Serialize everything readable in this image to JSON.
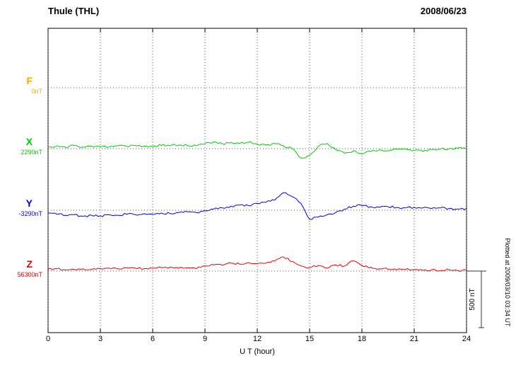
{
  "header": {
    "station": "Thule (THL)",
    "date": "2008/06/23"
  },
  "axis": {
    "xlabel": "U T (hour)",
    "ticks": [
      0,
      3,
      6,
      9,
      12,
      15,
      18,
      21,
      24
    ]
  },
  "scalebar": {
    "label": "500 nT"
  },
  "footer": {
    "plotted_at": "Plotted at 2009/03/10 03:34 UT"
  },
  "chart_data": {
    "type": "line",
    "title": "Thule (THL) magnetogram",
    "date": "2008/06/23",
    "xlabel": "U T (hour)",
    "x_range": [
      0,
      24
    ],
    "x_tick_step": 3,
    "sample_step_hours": 0.5,
    "scale_bar": {
      "label": "500 nT",
      "nT": 500
    },
    "grid": "dotted vertical gridlines every 3 h; dotted horizontal baseline per component",
    "legend_position": "left margin labels",
    "series": [
      {
        "name": "F",
        "baseline_label": "0nT",
        "baseline_nT": 0,
        "color": "#FFA500",
        "values_nT_offset": []
      },
      {
        "name": "X",
        "baseline_label": "2290nT",
        "baseline_nT": 2290,
        "color": "#00CC00",
        "values_nT_offset": [
          15,
          25,
          12,
          28,
          15,
          22,
          18,
          15,
          25,
          20,
          28,
          22,
          20,
          28,
          25,
          32,
          28,
          25,
          45,
          60,
          42,
          55,
          45,
          58,
          40,
          32,
          45,
          25,
          0,
          -85,
          -60,
          20,
          45,
          -10,
          -40,
          -20,
          -45,
          -25,
          -10,
          -20,
          -5,
          0,
          -15,
          -25,
          -10,
          -5,
          0,
          5,
          0
        ]
      },
      {
        "name": "Y",
        "baseline_label": "-3290nT",
        "baseline_nT": -3290,
        "color": "#0000EE",
        "values_nT_offset": [
          -25,
          -35,
          -45,
          -40,
          -55,
          -45,
          -50,
          -40,
          -45,
          -35,
          -40,
          -30,
          -35,
          -25,
          -30,
          -20,
          -15,
          -20,
          -5,
          10,
          20,
          35,
          45,
          40,
          60,
          70,
          90,
          155,
          120,
          60,
          -80,
          -60,
          -40,
          -20,
          10,
          35,
          40,
          30,
          25,
          30,
          25,
          20,
          25,
          20,
          15,
          20,
          15,
          10,
          15
        ]
      },
      {
        "name": "Z",
        "baseline_label": "56300nT",
        "baseline_nT": 56300,
        "color": "#EE0000",
        "values_nT_offset": [
          15,
          20,
          10,
          15,
          20,
          15,
          20,
          25,
          20,
          30,
          25,
          20,
          25,
          30,
          35,
          25,
          30,
          20,
          45,
          55,
          50,
          70,
          60,
          75,
          65,
          70,
          90,
          125,
          85,
          45,
          30,
          50,
          25,
          55,
          45,
          90,
          50,
          35,
          20,
          15,
          10,
          15,
          10,
          5,
          10,
          5,
          10,
          5,
          5
        ]
      }
    ]
  }
}
